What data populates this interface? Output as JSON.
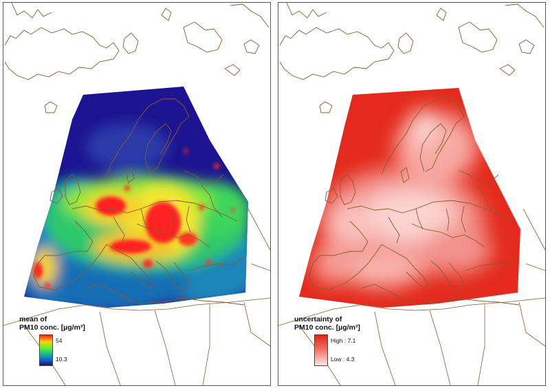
{
  "colors": {
    "coast": "#8a5a2b",
    "mean_high": "#ff1c1c",
    "mean_mid": "#55ef3a",
    "mean_low": "#1c0e7a",
    "unc_high": "#e22317",
    "unc_low": "#fde4e1"
  },
  "left_panel": {
    "legend_title": [
      "mean of",
      "PM10 conc. [µg/m³]"
    ],
    "legend_max": "54",
    "legend_min": "10.3"
  },
  "right_panel": {
    "legend_title": [
      "uncertainty of",
      "PM10 conc. [µg/m³]"
    ],
    "legend_max": "High : 7.1",
    "legend_min": "Low : 4.3"
  }
}
